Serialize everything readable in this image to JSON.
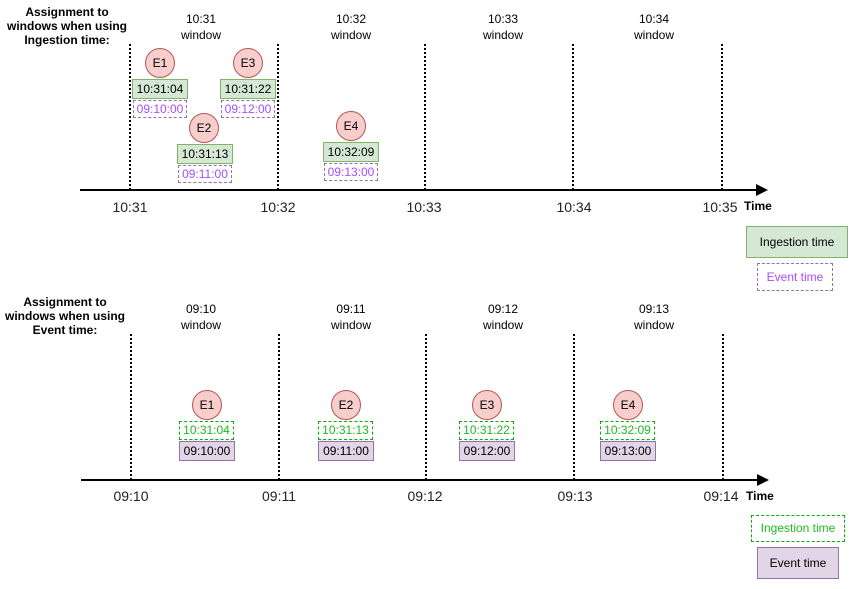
{
  "top": {
    "heading": "Assignment to\nwindows when using\nIngestion time:",
    "windows": [
      "10:31\nwindow",
      "10:32\nwindow",
      "10:33\nwindow",
      "10:34\nwindow"
    ],
    "ticks": [
      "10:31",
      "10:32",
      "10:33",
      "10:34",
      "10:35"
    ],
    "axis_label": "Time",
    "events": [
      {
        "name": "E1",
        "ingestion": "10:31:04",
        "event": "09:10:00"
      },
      {
        "name": "E2",
        "ingestion": "10:31:13",
        "event": "09:11:00"
      },
      {
        "name": "E3",
        "ingestion": "10:31:22",
        "event": "09:12:00"
      },
      {
        "name": "E4",
        "ingestion": "10:32:09",
        "event": "09:13:00"
      }
    ],
    "legend": {
      "primary": "Ingestion time",
      "secondary": "Event time"
    }
  },
  "bottom": {
    "heading": "Assignment to\nwindows when using\nEvent time:",
    "windows": [
      "09:10\nwindow",
      "09:11\nwindow",
      "09:12\nwindow",
      "09:13\nwindow"
    ],
    "ticks": [
      "09:10",
      "09:11",
      "09:12",
      "09:13",
      "09:14"
    ],
    "axis_label": "Time",
    "events": [
      {
        "name": "E1",
        "ingestion": "10:31:04",
        "event": "09:10:00"
      },
      {
        "name": "E2",
        "ingestion": "10:31:13",
        "event": "09:11:00"
      },
      {
        "name": "E3",
        "ingestion": "10:31:22",
        "event": "09:12:00"
      },
      {
        "name": "E4",
        "ingestion": "10:32:09",
        "event": "09:13:00"
      }
    ],
    "legend": {
      "primary": "Ingestion time",
      "secondary": "Event time"
    }
  },
  "colors": {
    "event_circle": "#f8cecc",
    "ingestion_box": "#d5e8d4",
    "event_box": "#e1d5e7",
    "dashed_purple_text": "#a64dff",
    "dashed_green_text": "#22b822"
  }
}
